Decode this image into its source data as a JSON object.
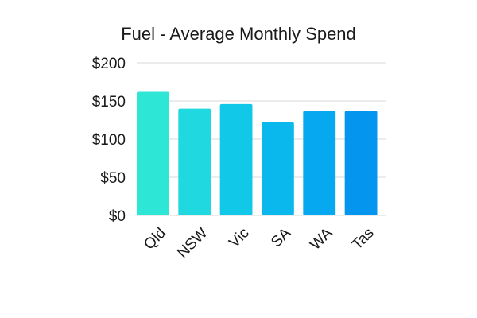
{
  "chart_data": {
    "type": "bar",
    "title": "Fuel - Average Monthly Spend",
    "xlabel": "",
    "ylabel": "",
    "categories": [
      "Qld",
      "NSW",
      "Vic",
      "SA",
      "WA",
      "Tas"
    ],
    "values": [
      162,
      140,
      146,
      122,
      137,
      137
    ],
    "ylim": [
      0,
      200
    ],
    "yticks": [
      0,
      50,
      100,
      150,
      200
    ],
    "ytick_labels": [
      "$0",
      "$50",
      "$100",
      "$150",
      "$200"
    ],
    "grid": true,
    "legend": "none",
    "colors": [
      "#2ee6d6",
      "#1fd8e0",
      "#12c8e8",
      "#0ab8ee",
      "#06a8f0",
      "#0496ee"
    ]
  }
}
